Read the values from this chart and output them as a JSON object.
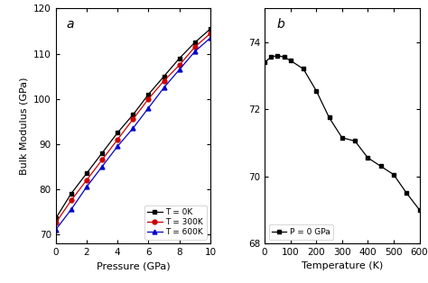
{
  "panel_a": {
    "label": "a",
    "xlabel": "Pressure (GPa)",
    "ylabel": "Bulk Modulus (GPa)",
    "xlim": [
      0,
      10
    ],
    "ylim": [
      68,
      120
    ],
    "yticks": [
      70,
      80,
      90,
      100,
      110,
      120
    ],
    "xticks": [
      0,
      2,
      4,
      6,
      8,
      10
    ],
    "series": [
      {
        "label": "T = 0K",
        "color": "#000000",
        "marker": "s",
        "x": [
          0,
          1,
          2,
          3,
          4,
          5,
          6,
          7,
          8,
          9,
          10
        ],
        "y": [
          73.5,
          79.0,
          83.5,
          88.0,
          92.5,
          96.5,
          101.0,
          105.0,
          109.0,
          112.5,
          115.5
        ]
      },
      {
        "label": "T = 300K",
        "color": "#cc0000",
        "marker": "o",
        "x": [
          0,
          1,
          2,
          3,
          4,
          5,
          6,
          7,
          8,
          9,
          10
        ],
        "y": [
          72.5,
          77.5,
          82.0,
          86.5,
          91.0,
          95.5,
          100.0,
          104.0,
          107.5,
          111.5,
          114.5
        ]
      },
      {
        "label": "T = 600K",
        "color": "#0000cc",
        "marker": "^",
        "x": [
          0,
          1,
          2,
          3,
          4,
          5,
          6,
          7,
          8,
          9,
          10
        ],
        "y": [
          71.0,
          75.5,
          80.5,
          85.0,
          89.5,
          93.5,
          98.0,
          102.5,
          106.5,
          110.5,
          113.5
        ]
      }
    ]
  },
  "panel_b": {
    "label": "b",
    "xlabel": "Temperature (K)",
    "ylabel": "",
    "xlim": [
      0,
      600
    ],
    "ylim": [
      68,
      75
    ],
    "yticks": [
      68,
      70,
      72,
      74
    ],
    "xticks": [
      0,
      100,
      200,
      300,
      400,
      500,
      600
    ],
    "series": [
      {
        "label": "P = 0 GPa",
        "color": "#000000",
        "marker": "s",
        "x": [
          0,
          25,
          50,
          75,
          100,
          150,
          200,
          250,
          300,
          350,
          400,
          450,
          500,
          550,
          600
        ],
        "y": [
          73.4,
          73.55,
          73.6,
          73.55,
          73.45,
          73.2,
          72.55,
          71.75,
          71.15,
          71.05,
          70.55,
          70.3,
          70.05,
          69.5,
          69.0
        ]
      }
    ]
  }
}
